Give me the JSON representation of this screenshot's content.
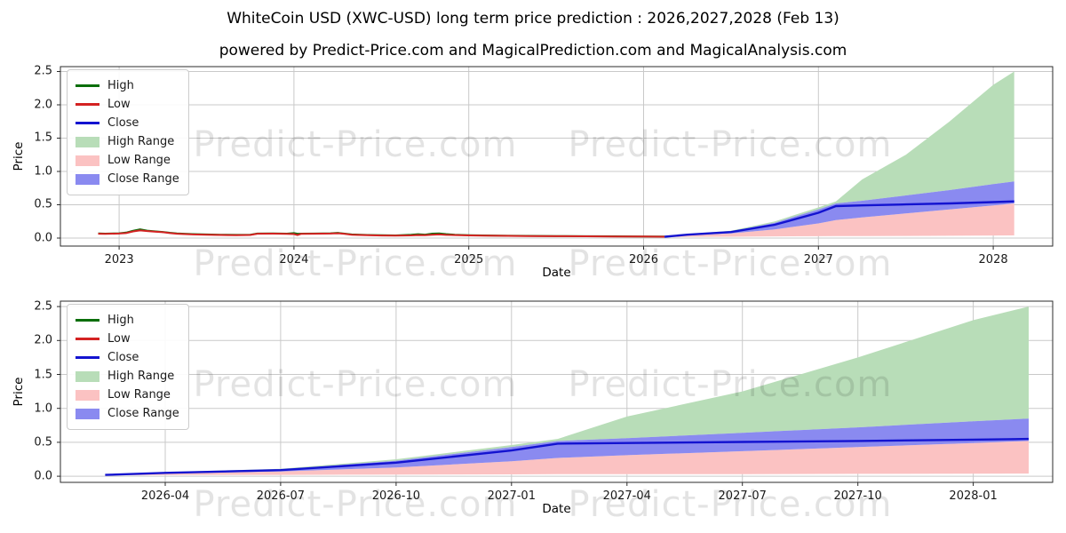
{
  "figure": {
    "title": "WhiteCoin USD (XWC-USD) long term price prediction : 2026,2027,2028 (Feb 13)",
    "subtitle": "powered by Predict-Price.com and MagicalPrediction.com and MagicalAnalysis.com",
    "watermark_text": "Predict-Price.com"
  },
  "colors": {
    "high_line": "#0a6e0a",
    "low_line": "#d42222",
    "close_line": "#1313d0",
    "high_range_fill": "#b8ddb8",
    "low_range_fill": "#fbc2c2",
    "close_range_fill": "#8a8af0",
    "grid": "#c9c9c9",
    "spine": "#2b2b2b",
    "watermark": "rgba(0,0,0,0.11)"
  },
  "chart_data": [
    {
      "type": "line+area",
      "title": "",
      "xlabel": "Date",
      "ylabel": "Price",
      "xlim": [
        2022.664,
        2028.34
      ],
      "ylim": [
        -0.12,
        2.573
      ],
      "grid": true,
      "legend_position": "upper-left",
      "xticks": [
        {
          "v": 2023,
          "label": "2023"
        },
        {
          "v": 2024,
          "label": "2024"
        },
        {
          "v": 2025,
          "label": "2025"
        },
        {
          "v": 2026,
          "label": "2026"
        },
        {
          "v": 2027,
          "label": "2027"
        },
        {
          "v": 2028,
          "label": "2028"
        }
      ],
      "yticks": [
        {
          "v": 0.0,
          "label": "0.0"
        },
        {
          "v": 0.5,
          "label": "0.5"
        },
        {
          "v": 1.0,
          "label": "1.0"
        },
        {
          "v": 1.5,
          "label": "1.5"
        },
        {
          "v": 2.0,
          "label": "2.0"
        },
        {
          "v": 2.5,
          "label": "2.5"
        }
      ],
      "legend": [
        {
          "label": "High",
          "type": "line",
          "color": "#0a6e0a"
        },
        {
          "label": "Low",
          "type": "line",
          "color": "#d42222"
        },
        {
          "label": "Close",
          "type": "line",
          "color": "#1313d0"
        },
        {
          "label": "High Range",
          "type": "patch",
          "color": "#b8ddb8"
        },
        {
          "label": "Low Range",
          "type": "patch",
          "color": "#fbc2c2"
        },
        {
          "label": "Close Range",
          "type": "patch",
          "color": "#8a8af0"
        }
      ],
      "history": {
        "t": [
          2022.88,
          2022.92,
          2023.0,
          2023.04,
          2023.08,
          2023.12,
          2023.16,
          2023.21,
          2023.25,
          2023.29,
          2023.33,
          2023.42,
          2023.5,
          2023.58,
          2023.67,
          2023.75,
          2023.79,
          2023.88,
          2023.96,
          2024.0,
          2024.02,
          2024.04,
          2024.12,
          2024.21,
          2024.25,
          2024.29,
          2024.33,
          2024.42,
          2024.5,
          2024.58,
          2024.67,
          2024.71,
          2024.75,
          2024.79,
          2024.83,
          2024.87,
          2024.92,
          2025.0,
          2025.08,
          2025.17,
          2025.33,
          2025.5,
          2025.67,
          2025.83,
          2026.0,
          2026.12
        ],
        "low": [
          0.065,
          0.062,
          0.068,
          0.075,
          0.1,
          0.115,
          0.105,
          0.095,
          0.088,
          0.075,
          0.065,
          0.055,
          0.05,
          0.047,
          0.044,
          0.046,
          0.065,
          0.066,
          0.064,
          0.06,
          0.045,
          0.062,
          0.065,
          0.068,
          0.072,
          0.062,
          0.05,
          0.042,
          0.038,
          0.036,
          0.04,
          0.045,
          0.042,
          0.05,
          0.055,
          0.048,
          0.045,
          0.04,
          0.036,
          0.034,
          0.03,
          0.028,
          0.026,
          0.024,
          0.022,
          0.02
        ],
        "high": [
          0.07,
          0.066,
          0.072,
          0.082,
          0.11,
          0.13,
          0.112,
          0.1,
          0.092,
          0.08,
          0.07,
          0.06,
          0.054,
          0.051,
          0.048,
          0.05,
          0.068,
          0.069,
          0.067,
          0.075,
          0.065,
          0.066,
          0.068,
          0.072,
          0.078,
          0.066,
          0.054,
          0.046,
          0.042,
          0.04,
          0.05,
          0.058,
          0.052,
          0.066,
          0.07,
          0.06,
          0.05,
          0.044,
          0.04,
          0.037,
          0.033,
          0.03,
          0.028,
          0.026,
          0.024,
          0.022
        ]
      },
      "prediction": {
        "t": [
          2026.12,
          2026.25,
          2026.5,
          2026.75,
          2027.0,
          2027.1,
          2027.25,
          2027.5,
          2027.75,
          2028.0,
          2028.12
        ],
        "close": [
          0.02,
          0.05,
          0.09,
          0.2,
          0.38,
          0.48,
          0.49,
          0.505,
          0.52,
          0.54,
          0.55
        ],
        "close_top": [
          0.025,
          0.055,
          0.1,
          0.23,
          0.43,
          0.52,
          0.56,
          0.64,
          0.72,
          0.81,
          0.85
        ],
        "close_bot": [
          0.015,
          0.04,
          0.07,
          0.13,
          0.22,
          0.27,
          0.31,
          0.37,
          0.43,
          0.49,
          0.52
        ],
        "high_top": [
          0.03,
          0.06,
          0.11,
          0.25,
          0.46,
          0.55,
          0.88,
          1.25,
          1.75,
          2.3,
          2.5
        ],
        "low_bot": [
          0.012,
          0.018,
          0.02,
          0.025,
          0.028,
          0.03,
          0.03,
          0.032,
          0.035,
          0.038,
          0.04
        ]
      }
    },
    {
      "type": "line+area",
      "title": "",
      "xlabel": "Date",
      "ylabel": "Price",
      "xlim": [
        2026.023,
        2028.172
      ],
      "ylim": [
        -0.09,
        2.58
      ],
      "grid": true,
      "legend_position": "upper-left",
      "xticks": [
        {
          "v": 2026.25,
          "label": "2026-04"
        },
        {
          "v": 2026.5,
          "label": "2026-07"
        },
        {
          "v": 2026.75,
          "label": "2026-10"
        },
        {
          "v": 2027.0,
          "label": "2027-01"
        },
        {
          "v": 2027.25,
          "label": "2027-04"
        },
        {
          "v": 2027.5,
          "label": "2027-07"
        },
        {
          "v": 2027.75,
          "label": "2027-10"
        },
        {
          "v": 2028.0,
          "label": "2028-01"
        }
      ],
      "yticks": [
        {
          "v": 0.0,
          "label": "0.0"
        },
        {
          "v": 0.5,
          "label": "0.5"
        },
        {
          "v": 1.0,
          "label": "1.0"
        },
        {
          "v": 1.5,
          "label": "1.5"
        },
        {
          "v": 2.0,
          "label": "2.0"
        },
        {
          "v": 2.5,
          "label": "2.5"
        }
      ],
      "legend": [
        {
          "label": "High",
          "type": "line",
          "color": "#0a6e0a"
        },
        {
          "label": "Low",
          "type": "line",
          "color": "#d42222"
        },
        {
          "label": "Close",
          "type": "line",
          "color": "#1313d0"
        },
        {
          "label": "High Range",
          "type": "patch",
          "color": "#b8ddb8"
        },
        {
          "label": "Low Range",
          "type": "patch",
          "color": "#fbc2c2"
        },
        {
          "label": "Close Range",
          "type": "patch",
          "color": "#8a8af0"
        }
      ],
      "prediction": {
        "t": [
          2026.12,
          2026.25,
          2026.5,
          2026.75,
          2027.0,
          2027.1,
          2027.25,
          2027.5,
          2027.75,
          2028.0,
          2028.12
        ],
        "close": [
          0.02,
          0.05,
          0.09,
          0.2,
          0.38,
          0.48,
          0.49,
          0.505,
          0.52,
          0.54,
          0.55
        ],
        "close_top": [
          0.025,
          0.055,
          0.1,
          0.23,
          0.43,
          0.52,
          0.56,
          0.64,
          0.72,
          0.81,
          0.85
        ],
        "close_bot": [
          0.015,
          0.04,
          0.07,
          0.13,
          0.22,
          0.27,
          0.31,
          0.37,
          0.43,
          0.49,
          0.52
        ],
        "high_top": [
          0.03,
          0.06,
          0.11,
          0.25,
          0.46,
          0.55,
          0.88,
          1.25,
          1.75,
          2.3,
          2.5
        ],
        "low_bot": [
          0.012,
          0.018,
          0.02,
          0.025,
          0.028,
          0.03,
          0.03,
          0.032,
          0.035,
          0.038,
          0.04
        ]
      }
    }
  ]
}
